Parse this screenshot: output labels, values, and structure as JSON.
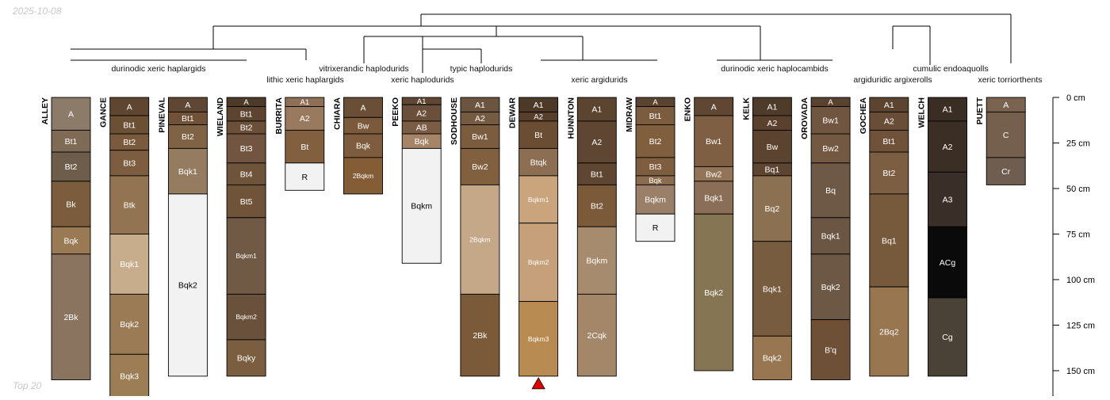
{
  "date_label": "2025-10-08",
  "footer_label": "Top 20",
  "depth_axis": {
    "unit": "cm",
    "max": 160,
    "ticks": [
      {
        "value": 0,
        "label": "0 cm"
      },
      {
        "value": 25,
        "label": "25 cm"
      },
      {
        "value": 50,
        "label": "50 cm"
      },
      {
        "value": 75,
        "label": "75 cm"
      },
      {
        "value": 100,
        "label": "100 cm"
      },
      {
        "value": 125,
        "label": "125 cm"
      },
      {
        "value": 150,
        "label": "150 cm"
      }
    ]
  },
  "taxa": [
    "durinodic xeric haplargids",
    "lithic xeric haplargids",
    "vitrixerandic haplodurids",
    "xeric haplodurids",
    "typic haplodurids",
    "xeric argidurids",
    "durinodic xeric haplocambids",
    "argiduridic argixerolls",
    "cumulic endoaquolls",
    "xeric torriorthents"
  ],
  "highlighted_profile": "DEWAR",
  "profiles": [
    {
      "name": "ALLEY",
      "horizons": [
        {
          "name": "A",
          "top": 0,
          "bottom": 18,
          "color": "#8d7b6a"
        },
        {
          "name": "Bt1",
          "top": 18,
          "bottom": 30,
          "color": "#7f6a55"
        },
        {
          "name": "Bt2",
          "top": 30,
          "bottom": 46,
          "color": "#6f5d4c"
        },
        {
          "name": "Bk",
          "top": 46,
          "bottom": 71,
          "color": "#7b5c3c"
        },
        {
          "name": "Bqk",
          "top": 71,
          "bottom": 86,
          "color": "#9a7a55"
        },
        {
          "name": "2Bk",
          "top": 86,
          "bottom": 155,
          "color": "#8a7460"
        }
      ]
    },
    {
      "name": "GANCE",
      "horizons": [
        {
          "name": "A",
          "top": 0,
          "bottom": 10,
          "color": "#5e4630"
        },
        {
          "name": "Bt1",
          "top": 10,
          "bottom": 20,
          "color": "#6c5036"
        },
        {
          "name": "Bt2",
          "top": 20,
          "bottom": 29,
          "color": "#7a5a3c"
        },
        {
          "name": "Bt3",
          "top": 29,
          "bottom": 43,
          "color": "#7c5d3f"
        },
        {
          "name": "Btk",
          "top": 43,
          "bottom": 75,
          "color": "#937452"
        },
        {
          "name": "Bqk1",
          "top": 75,
          "bottom": 108,
          "color": "#c8ad8c"
        },
        {
          "name": "Bqk2",
          "top": 108,
          "bottom": 141,
          "color": "#9a7b55"
        },
        {
          "name": "Bqk3",
          "top": 141,
          "bottom": 165,
          "color": "#9d7d55"
        }
      ]
    },
    {
      "name": "PINEVAL",
      "horizons": [
        {
          "name": "A",
          "top": 0,
          "bottom": 8,
          "color": "#5f4733"
        },
        {
          "name": "Bt1",
          "top": 8,
          "bottom": 15,
          "color": "#6f5237"
        },
        {
          "name": "Bt2",
          "top": 15,
          "bottom": 28,
          "color": "#806244"
        },
        {
          "name": "Bqk1",
          "top": 28,
          "bottom": 53,
          "color": "#957b60"
        },
        {
          "name": "Bqk2",
          "top": 53,
          "bottom": 153,
          "color": "#f2f2f2"
        }
      ]
    },
    {
      "name": "WIELAND",
      "horizons": [
        {
          "name": "A",
          "top": 0,
          "bottom": 5,
          "color": "#4e3a28"
        },
        {
          "name": "Bt1",
          "top": 5,
          "bottom": 13,
          "color": "#5d4431"
        },
        {
          "name": "Bt2",
          "top": 13,
          "bottom": 20,
          "color": "#6b4f38"
        },
        {
          "name": "Bt3",
          "top": 20,
          "bottom": 36,
          "color": "#725540"
        },
        {
          "name": "Bt4",
          "top": 36,
          "bottom": 48,
          "color": "#6f543c"
        },
        {
          "name": "Bt5",
          "top": 48,
          "bottom": 66,
          "color": "#705439"
        },
        {
          "name": "Bqkm1",
          "top": 66,
          "bottom": 108,
          "color": "#705a45"
        },
        {
          "name": "Bqkm2",
          "top": 108,
          "bottom": 133,
          "color": "#6a513b"
        },
        {
          "name": "Bqky",
          "top": 133,
          "bottom": 153,
          "color": "#7b5d40"
        }
      ]
    },
    {
      "name": "BURRITA",
      "horizons": [
        {
          "name": "A1",
          "top": 0,
          "bottom": 5,
          "color": "#8e7058"
        },
        {
          "name": "A2",
          "top": 5,
          "bottom": 18,
          "color": "#9a7a5e"
        },
        {
          "name": "Bt",
          "top": 18,
          "bottom": 36,
          "color": "#82603f"
        },
        {
          "name": "R",
          "top": 36,
          "bottom": 51,
          "color": "#f2f2f2"
        }
      ]
    },
    {
      "name": "CHIARA",
      "horizons": [
        {
          "name": "A",
          "top": 0,
          "bottom": 11,
          "color": "#6a4e35"
        },
        {
          "name": "Bw",
          "top": 11,
          "bottom": 20,
          "color": "#7b5a3b"
        },
        {
          "name": "Bqk",
          "top": 20,
          "bottom": 33,
          "color": "#7d5d3e"
        },
        {
          "name": "2Bqkm",
          "top": 33,
          "bottom": 53,
          "color": "#845d36"
        }
      ]
    },
    {
      "name": "PEEKO",
      "horizons": [
        {
          "name": "A1",
          "top": 0,
          "bottom": 4,
          "color": "#5f4734"
        },
        {
          "name": "A2",
          "top": 4,
          "bottom": 13,
          "color": "#6a503b"
        },
        {
          "name": "AB",
          "top": 13,
          "bottom": 20,
          "color": "#7a5d44"
        },
        {
          "name": "Bqk",
          "top": 20,
          "bottom": 28,
          "color": "#a58468"
        },
        {
          "name": "Bqkm",
          "top": 28,
          "bottom": 91,
          "color": "#f2f2f2"
        }
      ]
    },
    {
      "name": "SODHOUSE",
      "horizons": [
        {
          "name": "A1",
          "top": 0,
          "bottom": 8,
          "color": "#6b5540"
        },
        {
          "name": "A2",
          "top": 8,
          "bottom": 15,
          "color": "#755b42"
        },
        {
          "name": "Bw1",
          "top": 15,
          "bottom": 28,
          "color": "#7b5c3e"
        },
        {
          "name": "Bw2",
          "top": 28,
          "bottom": 48,
          "color": "#80603f"
        },
        {
          "name": "2Bqkm",
          "top": 48,
          "bottom": 108,
          "color": "#c5a888"
        },
        {
          "name": "2Bk",
          "top": 108,
          "bottom": 153,
          "color": "#7b5a39"
        }
      ]
    },
    {
      "name": "DEWAR",
      "horizons": [
        {
          "name": "A1",
          "top": 0,
          "bottom": 8,
          "color": "#4d3927"
        },
        {
          "name": "A2",
          "top": 8,
          "bottom": 13,
          "color": "#583f2b"
        },
        {
          "name": "Bt",
          "top": 13,
          "bottom": 28,
          "color": "#6b4d33"
        },
        {
          "name": "Btqk",
          "top": 28,
          "bottom": 43,
          "color": "#8c6e52"
        },
        {
          "name": "Bqkm1",
          "top": 43,
          "bottom": 69,
          "color": "#c9a47c"
        },
        {
          "name": "Bqkm2",
          "top": 69,
          "bottom": 112,
          "color": "#c5a07a"
        },
        {
          "name": "Bqkm3",
          "top": 112,
          "bottom": 153,
          "color": "#b88b52"
        }
      ]
    },
    {
      "name": "HUNNTON",
      "horizons": [
        {
          "name": "A1",
          "top": 0,
          "bottom": 13,
          "color": "#5b4531"
        },
        {
          "name": "A2",
          "top": 13,
          "bottom": 36,
          "color": "#5f4632"
        },
        {
          "name": "Bt1",
          "top": 36,
          "bottom": 48,
          "color": "#5e4633"
        },
        {
          "name": "Bt2",
          "top": 48,
          "bottom": 71,
          "color": "#7b5a3a"
        },
        {
          "name": "Bqkm",
          "top": 71,
          "bottom": 108,
          "color": "#a68b6e"
        },
        {
          "name": "2Cqk",
          "top": 108,
          "bottom": 153,
          "color": "#a48769"
        }
      ]
    },
    {
      "name": "MIDRAW",
      "horizons": [
        {
          "name": "A",
          "top": 0,
          "bottom": 5,
          "color": "#5a4330"
        },
        {
          "name": "Bt1",
          "top": 5,
          "bottom": 15,
          "color": "#7c5c3e"
        },
        {
          "name": "Bt2",
          "top": 15,
          "bottom": 33,
          "color": "#805f3f"
        },
        {
          "name": "Bt3",
          "top": 33,
          "bottom": 43,
          "color": "#7f5e40"
        },
        {
          "name": "Bqk",
          "top": 43,
          "bottom": 48,
          "color": "#8c6c4f"
        },
        {
          "name": "Bqkm",
          "top": 48,
          "bottom": 64,
          "color": "#9a8068"
        },
        {
          "name": "R",
          "top": 64,
          "bottom": 79,
          "color": "#f2f2f2"
        }
      ]
    },
    {
      "name": "ENKO",
      "horizons": [
        {
          "name": "A",
          "top": 0,
          "bottom": 10,
          "color": "#5f4734"
        },
        {
          "name": "Bw1",
          "top": 10,
          "bottom": 38,
          "color": "#7e5f44"
        },
        {
          "name": "Bw2",
          "top": 38,
          "bottom": 46,
          "color": "#937456"
        },
        {
          "name": "Bqk1",
          "top": 46,
          "bottom": 64,
          "color": "#8a6e57"
        },
        {
          "name": "Bqk2",
          "top": 64,
          "bottom": 150,
          "color": "#867552"
        }
      ]
    },
    {
      "name": "KELK",
      "horizons": [
        {
          "name": "A1",
          "top": 0,
          "bottom": 10,
          "color": "#4f3b29"
        },
        {
          "name": "A2",
          "top": 10,
          "bottom": 18,
          "color": "#5a412e"
        },
        {
          "name": "Bw",
          "top": 18,
          "bottom": 36,
          "color": "#5c4330"
        },
        {
          "name": "Bq1",
          "top": 36,
          "bottom": 43,
          "color": "#5e4532"
        },
        {
          "name": "Bq2",
          "top": 43,
          "bottom": 79,
          "color": "#8c7052"
        },
        {
          "name": "Bqk1",
          "top": 79,
          "bottom": 131,
          "color": "#785c3f"
        },
        {
          "name": "Bqk2",
          "top": 131,
          "bottom": 155,
          "color": "#977651"
        }
      ]
    },
    {
      "name": "OROVADA",
      "horizons": [
        {
          "name": "A",
          "top": 0,
          "bottom": 5,
          "color": "#5a4230"
        },
        {
          "name": "Bw1",
          "top": 5,
          "bottom": 20,
          "color": "#705640"
        },
        {
          "name": "Bw2",
          "top": 20,
          "bottom": 36,
          "color": "#735942"
        },
        {
          "name": "Bq",
          "top": 36,
          "bottom": 66,
          "color": "#6e5947"
        },
        {
          "name": "Bqk1",
          "top": 66,
          "bottom": 86,
          "color": "#6a5643"
        },
        {
          "name": "Bqk2",
          "top": 86,
          "bottom": 122,
          "color": "#6d5845"
        },
        {
          "name": "B'q",
          "top": 122,
          "bottom": 155,
          "color": "#6e5037"
        }
      ]
    },
    {
      "name": "GOCHEA",
      "horizons": [
        {
          "name": "A1",
          "top": 0,
          "bottom": 8,
          "color": "#5c4431"
        },
        {
          "name": "A2",
          "top": 8,
          "bottom": 18,
          "color": "#6a4d36"
        },
        {
          "name": "Bt1",
          "top": 18,
          "bottom": 30,
          "color": "#6f5239"
        },
        {
          "name": "Bt2",
          "top": 30,
          "bottom": 53,
          "color": "#7c5f43"
        },
        {
          "name": "Bq1",
          "top": 53,
          "bottom": 104,
          "color": "#775a3c"
        },
        {
          "name": "2Bq2",
          "top": 104,
          "bottom": 153,
          "color": "#977650"
        }
      ]
    },
    {
      "name": "WELCH",
      "horizons": [
        {
          "name": "A1",
          "top": 0,
          "bottom": 13,
          "color": "#3a2d24"
        },
        {
          "name": "A2",
          "top": 13,
          "bottom": 41,
          "color": "#3a2e25"
        },
        {
          "name": "A3",
          "top": 41,
          "bottom": 71,
          "color": "#3a2f28"
        },
        {
          "name": "ACg",
          "top": 71,
          "bottom": 110,
          "color": "#0a0a0a"
        },
        {
          "name": "Cg",
          "top": 110,
          "bottom": 153,
          "color": "#4a4236"
        }
      ]
    },
    {
      "name": "PUETT",
      "horizons": [
        {
          "name": "A",
          "top": 0,
          "bottom": 8,
          "color": "#7a6450"
        },
        {
          "name": "C",
          "top": 8,
          "bottom": 33,
          "color": "#75604d"
        },
        {
          "name": "Cr",
          "top": 33,
          "bottom": 48,
          "color": "#6f5e4f"
        }
      ]
    }
  ]
}
